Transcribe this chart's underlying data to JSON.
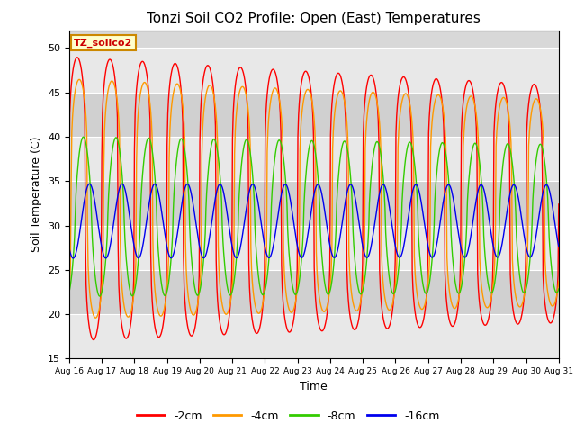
{
  "title": "Tonzi Soil CO2 Profile: Open (East) Temperatures",
  "xlabel": "Time",
  "ylabel": "Soil Temperature (C)",
  "ylim": [
    15,
    52
  ],
  "yticks": [
    15,
    20,
    25,
    30,
    35,
    40,
    45,
    50
  ],
  "legend_label": "TZ_soilco2",
  "series_labels": [
    "-2cm",
    "-4cm",
    "-8cm",
    "-16cm"
  ],
  "series_colors": [
    "#ff0000",
    "#ff9900",
    "#33cc00",
    "#0000ee"
  ],
  "n_days": 15,
  "start_day": 16,
  "end_day": 31,
  "amplitudes": [
    16.0,
    13.5,
    9.0,
    4.2
  ],
  "means": [
    33.0,
    33.0,
    31.0,
    30.5
  ],
  "phase_lags_hours": [
    0.0,
    1.5,
    4.5,
    9.0
  ],
  "sharpness": [
    4.0,
    3.5,
    1.5,
    1.0
  ],
  "amp_decay": [
    0.012,
    0.01,
    0.005,
    0.002
  ],
  "mean_trend": [
    -0.04,
    -0.03,
    -0.015,
    0.0
  ]
}
